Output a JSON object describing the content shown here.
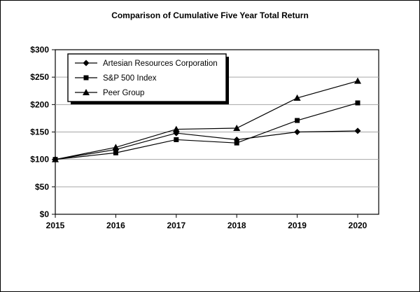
{
  "title": "Comparison of Cumulative Five Year Total Return",
  "chart_data": {
    "type": "line",
    "title": "Comparison of Cumulative Five Year Total Return",
    "x": [
      "2015",
      "2016",
      "2017",
      "2018",
      "2019",
      "2020"
    ],
    "series": [
      {
        "name": "Artesian Resources Corporation",
        "marker": "diamond",
        "values": [
          100,
          118,
          148,
          136,
          150,
          152
        ]
      },
      {
        "name": "S&P 500 Index",
        "marker": "square",
        "values": [
          100,
          112,
          136,
          130,
          171,
          203
        ]
      },
      {
        "name": "Peer Group",
        "marker": "triangle",
        "values": [
          100,
          122,
          155,
          157,
          212,
          243
        ]
      }
    ],
    "ylim": [
      0,
      300
    ],
    "ytick_step": 50,
    "ytick_labels": [
      "$0",
      "$50",
      "$100",
      "$150",
      "$200",
      "$250",
      "$300"
    ],
    "grid": true,
    "legend_position": "top-left",
    "colors": {
      "line": "#000000",
      "marker": "#000000",
      "grid": "#a6a6a6",
      "border": "#000000",
      "background": "#ffffff",
      "legend_shadow": "#000000"
    }
  }
}
